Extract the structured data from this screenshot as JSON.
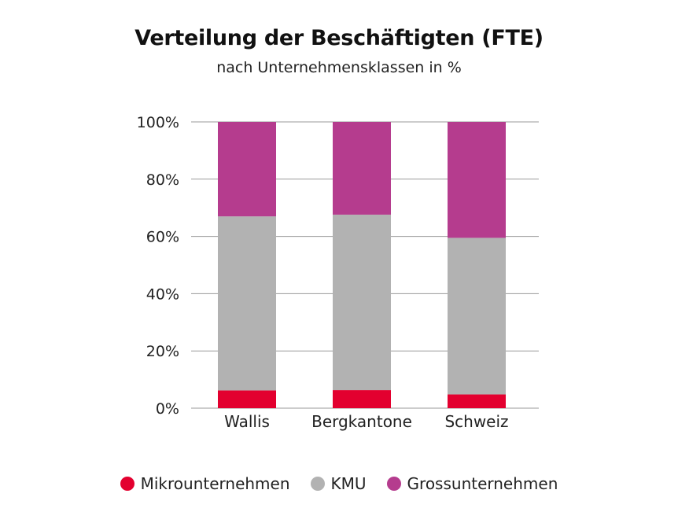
{
  "chart_data": {
    "type": "bar",
    "stacked": true,
    "title": "Verteilung der Beschäftigten (FTE)",
    "subtitle": "nach Unternehmensklassen in %",
    "categories": [
      "Wallis",
      "Bergkantone",
      "Schweiz"
    ],
    "series": [
      {
        "name": "Mikrounternehmen",
        "color": "#e3002f",
        "values": [
          6.2,
          6.3,
          4.8
        ]
      },
      {
        "name": "KMU",
        "color": "#b2b2b2",
        "values": [
          60.8,
          61.3,
          54.7
        ]
      },
      {
        "name": "Grossunternehmen",
        "color": "#b53c8e",
        "values": [
          33.0,
          32.4,
          40.5
        ]
      }
    ],
    "ylim": [
      0,
      100
    ],
    "yticks": [
      "0%",
      "20%",
      "40%",
      "60%",
      "80%",
      "100%"
    ],
    "grid": true,
    "legend": "bottom"
  }
}
